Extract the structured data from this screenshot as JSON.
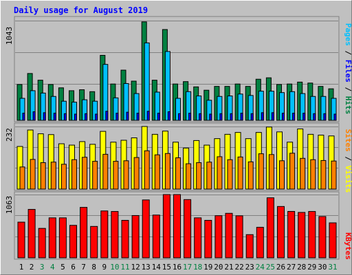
{
  "chart_data": [
    {
      "type": "bar",
      "title": "Daily usage for August 2019",
      "categories": [
        "1",
        "2",
        "3",
        "4",
        "5",
        "6",
        "7",
        "8",
        "9",
        "10",
        "11",
        "12",
        "13",
        "14",
        "15",
        "16",
        "17",
        "18",
        "19",
        "20",
        "21",
        "22",
        "23",
        "24",
        "25",
        "26",
        "27",
        "28",
        "29",
        "30",
        "31"
      ],
      "weekend_days": [
        "3",
        "4",
        "10",
        "11",
        "17",
        "18",
        "24",
        "25",
        "31"
      ],
      "ymax_label": "1043",
      "ymax": 1043,
      "y_axis_labels": [
        "Pages",
        "Files",
        "Hits"
      ],
      "series": [
        {
          "name": "Hits",
          "color": "#008040",
          "values": [
            375,
            490,
            420,
            375,
            340,
            310,
            320,
            300,
            680,
            380,
            525,
            410,
            1030,
            420,
            950,
            380,
            405,
            350,
            315,
            355,
            355,
            380,
            355,
            430,
            445,
            375,
            380,
            400,
            390,
            355,
            330
          ]
        },
        {
          "name": "Files",
          "color": "#00c0ff",
          "values": [
            230,
            310,
            285,
            250,
            200,
            190,
            215,
            200,
            585,
            235,
            385,
            280,
            810,
            295,
            720,
            230,
            300,
            255,
            210,
            250,
            255,
            275,
            260,
            305,
            305,
            290,
            300,
            280,
            250,
            250,
            230
          ]
        },
        {
          "name": "Pages",
          "color": "#0000ff",
          "values": [
            75,
            90,
            80,
            75,
            70,
            65,
            70,
            65,
            95,
            75,
            85,
            75,
            95,
            75,
            90,
            70,
            75,
            70,
            65,
            70,
            70,
            75,
            70,
            80,
            80,
            75,
            75,
            75,
            70,
            70,
            65
          ]
        }
      ]
    },
    {
      "type": "bar",
      "ymax_label": "232",
      "ymax": 232,
      "y_axis_labels": [
        "Sites",
        "Visits"
      ],
      "series": [
        {
          "name": "Visits",
          "color": "#ffff00",
          "values": [
            158,
            219,
            205,
            202,
            168,
            163,
            176,
            166,
            214,
            174,
            181,
            190,
            232,
            203,
            215,
            174,
            152,
            180,
            163,
            187,
            203,
            210,
            187,
            210,
            230,
            212,
            174,
            223,
            203,
            200,
            197
          ]
        },
        {
          "name": "Sites",
          "color": "#ff8000",
          "values": [
            82,
            110,
            98,
            100,
            92,
            109,
            118,
            103,
            129,
            103,
            105,
            117,
            142,
            127,
            132,
            116,
            94,
            98,
            100,
            120,
            109,
            119,
            101,
            131,
            128,
            105,
            133,
            114,
            109,
            106,
            104
          ]
        }
      ]
    },
    {
      "type": "bar",
      "ymax_label": "1063",
      "ymax": 1063,
      "y_axis_labels": [
        "KBytes"
      ],
      "series": [
        {
          "name": "KBytes",
          "color": "#ff0000",
          "values": [
            600,
            814,
            495,
            672,
            672,
            546,
            848,
            528,
            788,
            779,
            630,
            711,
            973,
            719,
            1063,
            1063,
            979,
            672,
            630,
            708,
            748,
            706,
            390,
            513,
            1009,
            863,
            780,
            763,
            779,
            694,
            588
          ]
        }
      ]
    }
  ]
}
